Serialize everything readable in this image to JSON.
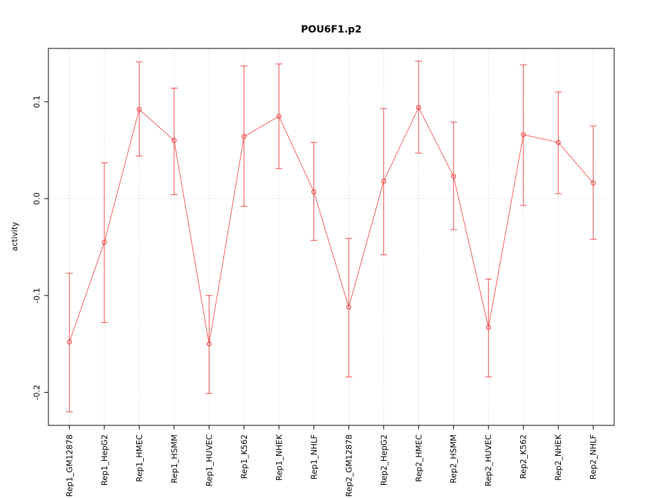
{
  "chart_data": {
    "type": "line",
    "title": "POU6F1.p2",
    "xlabel": "",
    "ylabel": "activity",
    "legend": "none",
    "categories": [
      "Rep1_GM12878",
      "Rep1_HepG2",
      "Rep1_HMEC",
      "Rep1_HSMM",
      "Rep1_HUVEC",
      "Rep1_K562",
      "Rep1_NHEK",
      "Rep1_NHLF",
      "Rep2_GM12878",
      "Rep2_HepG2",
      "Rep2_HMEC",
      "Rep2_HSMM",
      "Rep2_HUVEC",
      "Rep2_K562",
      "Rep2_NHEK",
      "Rep2_NHLF"
    ],
    "values": [
      -0.148,
      -0.045,
      0.092,
      0.06,
      -0.15,
      0.064,
      0.085,
      0.007,
      -0.112,
      0.018,
      0.094,
      0.023,
      -0.133,
      0.066,
      0.058,
      0.016
    ],
    "error_low": [
      -0.22,
      -0.128,
      0.044,
      0.004,
      -0.201,
      -0.008,
      0.031,
      -0.043,
      -0.184,
      -0.058,
      0.047,
      -0.032,
      -0.184,
      -0.007,
      0.005,
      -0.042
    ],
    "error_high": [
      -0.077,
      0.037,
      0.141,
      0.114,
      -0.1,
      0.137,
      0.139,
      0.058,
      -0.041,
      0.093,
      0.142,
      0.079,
      -0.083,
      0.138,
      0.11,
      0.075
    ],
    "yticks": [
      -0.2,
      -0.1,
      0.0,
      0.1
    ],
    "ylim": [
      -0.234,
      0.155
    ],
    "grid": {
      "vertical": "dotted-per-category",
      "horizontal_at_zero": true
    },
    "point_style": "open-circle",
    "error_bar_caps": true,
    "colors": {
      "series": "#f04848",
      "grid": "#c9c9c9",
      "axis": "#000000",
      "text": "#000000",
      "background": "#ffffff"
    }
  }
}
